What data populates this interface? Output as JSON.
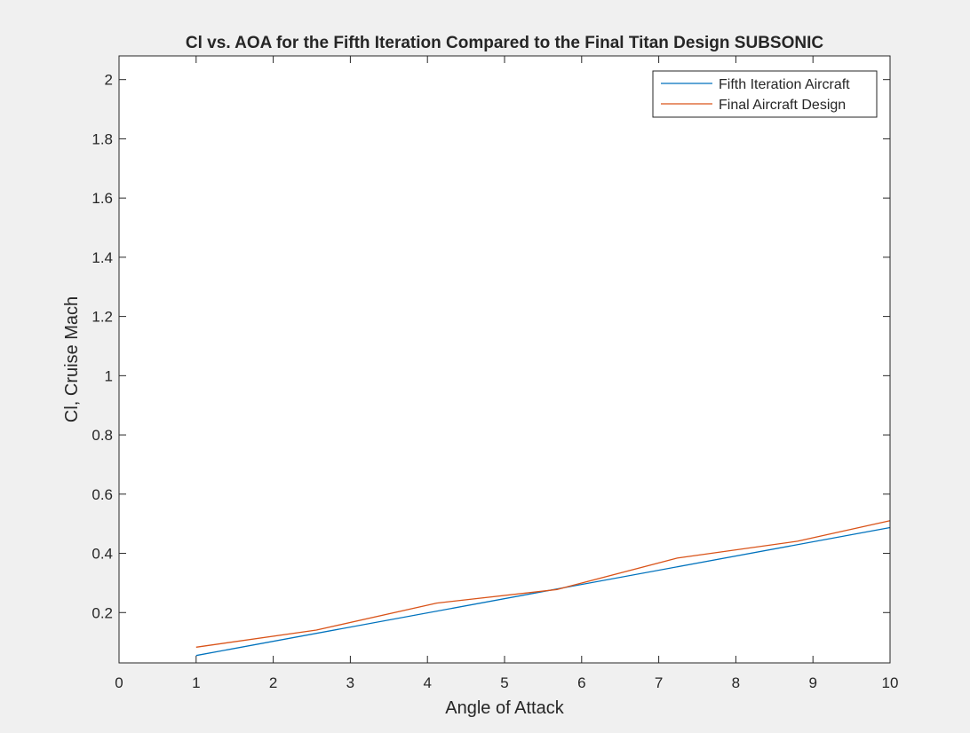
{
  "chart_data": {
    "type": "line",
    "title": "Cl vs. AOA for the Fifth Iteration Compared to the Final Titan Design SUBSONIC",
    "xlabel": "Angle of Attack",
    "ylabel": "Cl, Cruise Mach",
    "xlim": [
      0,
      10
    ],
    "ylim": [
      0.03,
      2.08
    ],
    "xticks": [
      0,
      1,
      2,
      3,
      4,
      5,
      6,
      7,
      8,
      9,
      10
    ],
    "yticks": [
      0.2,
      0.4,
      0.6,
      0.8,
      1,
      1.2,
      1.4,
      1.6,
      1.8,
      2
    ],
    "grid": false,
    "legend_position": "top-right",
    "series": [
      {
        "name": "Fifth Iteration Aircraft",
        "color": "#0072bd",
        "x": [
          1,
          10
        ],
        "y": [
          0.055,
          0.487
        ]
      },
      {
        "name": "Final Aircraft Design",
        "color": "#d95319",
        "x": [
          1,
          2.56,
          4.12,
          5.68,
          7.24,
          8.8,
          10
        ],
        "y": [
          0.083,
          0.141,
          0.232,
          0.278,
          0.384,
          0.441,
          0.51
        ]
      }
    ]
  }
}
